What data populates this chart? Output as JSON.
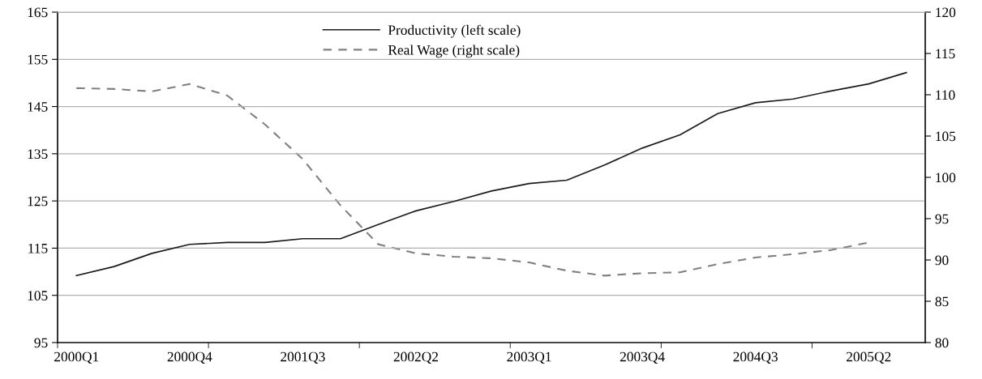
{
  "chart_data": {
    "type": "line",
    "categories": [
      "2000Q1",
      null,
      null,
      "2000Q4",
      null,
      null,
      "2001Q3",
      null,
      null,
      "2002Q2",
      null,
      null,
      "2003Q1",
      null,
      null,
      "2003Q4",
      null,
      null,
      "2004Q3",
      null,
      null,
      "2005Q2",
      null
    ],
    "series": [
      {
        "name": "Productivity (left scale)",
        "color": "#1a1a1a",
        "line_style": "solid",
        "values": [
          109.2,
          111.1,
          113.9,
          115.8,
          116.2,
          116.2,
          117.0,
          117.0,
          120.0,
          122.9,
          124.9,
          127.1,
          128.7,
          129.4,
          132.6,
          136.2,
          139.0,
          143.5,
          145.8,
          146.6,
          148.3,
          149.8,
          152.2
        ]
      },
      {
        "name": "Real Wage (right scale)",
        "color": "#808080",
        "line_style": "dashed",
        "axis": "y2",
        "values": [
          110.8,
          110.7,
          110.4,
          111.3,
          109.9,
          106.4,
          102.2,
          96.6,
          91.9,
          90.8,
          90.4,
          90.2,
          89.7,
          88.7,
          88.1,
          88.4,
          88.5,
          89.5,
          90.3,
          90.7,
          91.2,
          92.1,
          null
        ]
      }
    ],
    "ylim": [
      95,
      165
    ],
    "yticks": [
      95,
      105,
      115,
      125,
      135,
      145,
      155,
      165
    ],
    "y2lim": [
      80,
      120
    ],
    "y2ticks": [
      80,
      85,
      90,
      95,
      100,
      105,
      110,
      115,
      120
    ],
    "grid": "y",
    "legend": "top",
    "marker": "none"
  }
}
